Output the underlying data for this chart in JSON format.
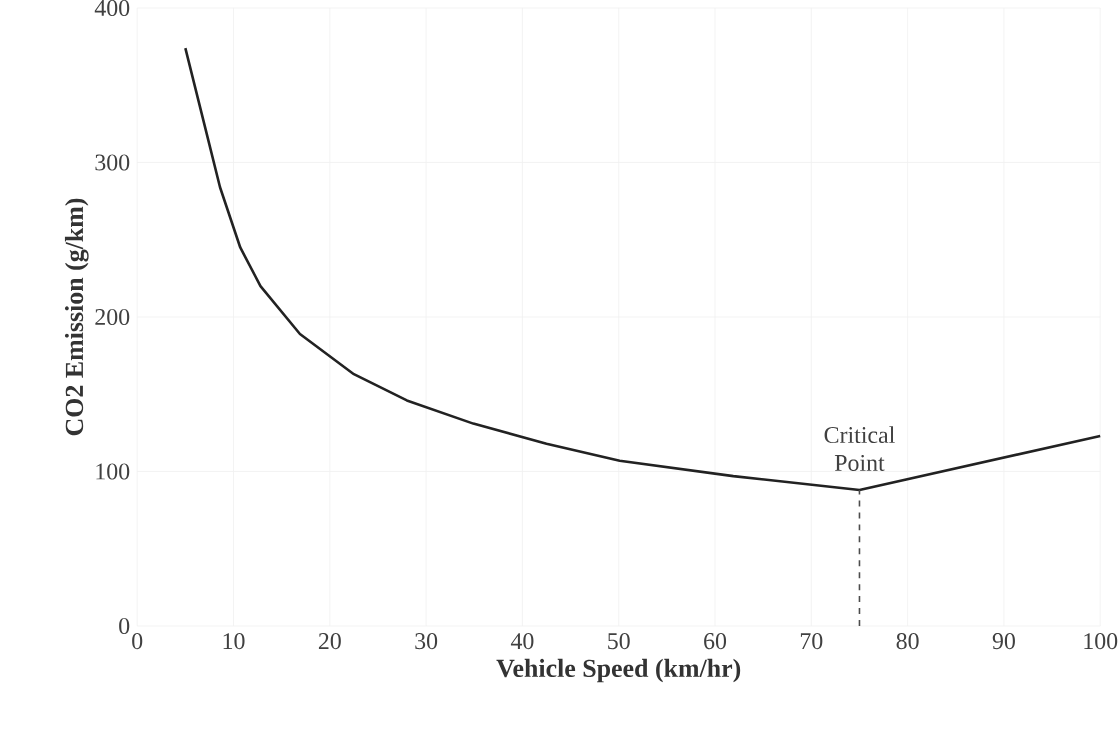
{
  "chart_data": {
    "type": "line",
    "xlabel": "Vehicle Speed (km/hr)",
    "ylabel": "CO2 Emission (g/km)",
    "x": [
      5,
      7.2,
      8.6,
      10.7,
      12.8,
      16.9,
      22.5,
      28,
      34.9,
      42.5,
      50.1,
      61.9,
      75,
      100
    ],
    "values": [
      374,
      319,
      284,
      245,
      220,
      189,
      163,
      146,
      131,
      118,
      107,
      97,
      88,
      123
    ],
    "color": "#222222",
    "xlim": [
      0,
      100
    ],
    "ylim": [
      0,
      400
    ],
    "xticks": [
      0,
      10,
      20,
      30,
      40,
      50,
      60,
      70,
      80,
      90,
      100
    ],
    "yticks": [
      0,
      100,
      200,
      300,
      400
    ],
    "grid": true,
    "marker": "none",
    "line_style": "solid",
    "ref_lines": [
      {
        "axis": "x",
        "value": 75,
        "label": null,
        "line_style": "dashed"
      }
    ],
    "annotations": [
      {
        "text": "Critical Point",
        "x": 75,
        "y": 88
      }
    ]
  }
}
